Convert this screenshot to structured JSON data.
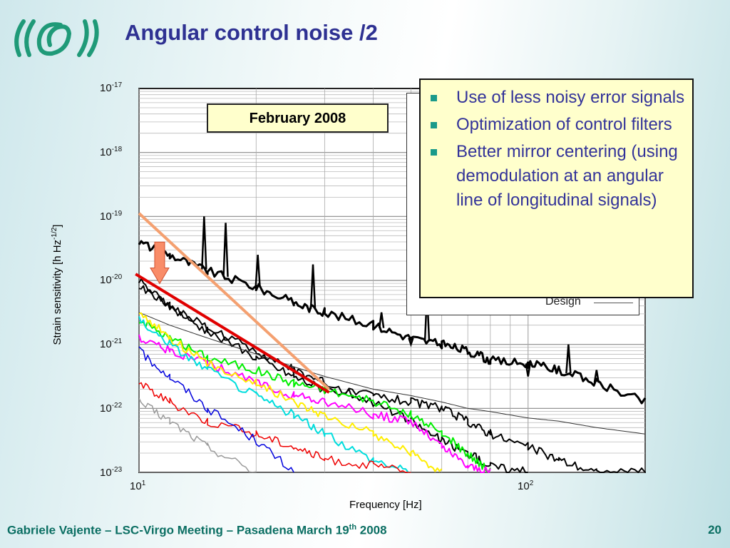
{
  "slide": {
    "title": "Angular control noise /2",
    "logo": "Virgo",
    "date_label": "February 2008",
    "notes": [
      "Use of less noisy error signals",
      "Optimization of control filters",
      "Better mirror centering (using demodulation at an angular line of longitudinal signals)"
    ],
    "footer": {
      "author": "Gabriele Vajente – LSC-Virgo Meeting – Pasadena March 19",
      "sup": "th",
      "year": " 2008"
    },
    "page_number": "20",
    "colors": {
      "title": "#2e3192",
      "footer": "#0a6e62",
      "bullet": "#1a9a8a",
      "note_text": "#333399",
      "logo": "#1f9a78"
    }
  },
  "chart_data": {
    "type": "line",
    "xlabel": "Frequency [Hz]",
    "ylabel": "Strain sensitivity [h Hz",
    "ylabel_sup": "-1/2",
    "ylabel_end": "]",
    "xscale": "log",
    "yscale": "log",
    "xlim": [
      10,
      200
    ],
    "ylim": [
      1e-23,
      1e-17
    ],
    "grid": true,
    "x_ticks": [
      {
        "base": "10",
        "exp": "1"
      },
      {
        "base": "10",
        "exp": "2"
      }
    ],
    "y_ticks": [
      {
        "base": "10",
        "exp": "-17"
      },
      {
        "base": "10",
        "exp": "-18"
      },
      {
        "base": "10",
        "exp": "-19"
      },
      {
        "base": "10",
        "exp": "-20"
      },
      {
        "base": "10",
        "exp": "-21"
      },
      {
        "base": "10",
        "exp": "-22"
      },
      {
        "base": "10",
        "exp": "-23"
      }
    ],
    "legend_visible_entry": "Design",
    "x": [
      10,
      12,
      15,
      20,
      25,
      30,
      40,
      50,
      60,
      70,
      80,
      100,
      120,
      150,
      200
    ],
    "series_log10": [
      {
        "color": "#000000",
        "width": 3,
        "values": [
          -19.4,
          -19.6,
          -19.85,
          -20.1,
          -20.35,
          -20.5,
          -20.7,
          -20.9,
          -21.0,
          -21.1,
          -21.25,
          -21.3,
          -21.4,
          -21.6,
          -21.9
        ],
        "peaks": [
          [
            14.7,
            -19.0
          ],
          [
            16.7,
            -19.1
          ],
          [
            20.2,
            -19.6
          ],
          [
            28,
            -19.75
          ],
          [
            42,
            -20.5
          ],
          [
            50,
            -21.0
          ],
          [
            55,
            -20.2
          ],
          [
            100,
            -21.5
          ],
          [
            127,
            -21.0
          ],
          [
            150,
            -21.4
          ]
        ]
      },
      {
        "color": "#000000",
        "width": 2,
        "values": [
          -20.0,
          -20.4,
          -20.8,
          -21.2,
          -21.5,
          -21.7,
          -21.8,
          -21.9,
          -22.0,
          -22.2,
          -22.4,
          -22.6,
          -22.8,
          -23,
          -23
        ]
      },
      {
        "color": "#000000",
        "width": 2,
        "values": [
          -20.1,
          -20.4,
          -20.75,
          -21.1,
          -21.4,
          -21.6,
          -21.9,
          -22.2,
          -22.5,
          -22.7,
          -22.9,
          -23,
          null,
          null,
          null
        ]
      },
      {
        "color": "#333333",
        "width": 1,
        "name": "Design",
        "values": [
          -20.5,
          -20.7,
          -20.9,
          -21.15,
          -21.35,
          -21.5,
          -21.7,
          -21.8,
          -21.9,
          -22.0,
          -22.05,
          -22.15,
          -22.2,
          -22.3,
          -22.4
        ]
      },
      {
        "color": "#00ee00",
        "width": 2,
        "values": [
          -20.6,
          -20.9,
          -21.2,
          -21.4,
          -21.6,
          -21.7,
          -21.9,
          -22.1,
          -22.4,
          -22.7,
          -23,
          null,
          null,
          null,
          null
        ]
      },
      {
        "color": "#ff00ff",
        "width": 2,
        "values": [
          -20.9,
          -21.1,
          -21.3,
          -21.6,
          -21.8,
          -21.9,
          -22.1,
          -22.2,
          -22.6,
          -22.9,
          -23,
          null,
          null,
          null,
          null
        ]
      },
      {
        "color": "#ffee00",
        "width": 2,
        "values": [
          -20.5,
          -20.9,
          -21.3,
          -21.6,
          -21.9,
          -22.1,
          -22.4,
          -22.7,
          -23,
          null,
          null,
          null,
          null,
          null,
          null
        ]
      },
      {
        "color": "#00dddd",
        "width": 2,
        "values": [
          -20.6,
          -21.0,
          -21.4,
          -21.8,
          -22.1,
          -22.4,
          -22.8,
          -23,
          null,
          null,
          null,
          null,
          null,
          null,
          null
        ]
      },
      {
        "color": "#ee0000",
        "width": 1.5,
        "values": [
          -21.6,
          -21.9,
          -22.2,
          -22.4,
          -22.6,
          -22.8,
          -22.9,
          -23,
          null,
          null,
          null,
          null,
          null,
          null,
          null
        ]
      },
      {
        "color": "#0000dd",
        "width": 1.5,
        "values": [
          -21.1,
          -21.5,
          -22.0,
          -22.5,
          -23,
          null,
          null,
          null,
          null,
          null,
          null,
          null,
          null,
          null,
          null
        ]
      },
      {
        "color": "#999999",
        "width": 1.5,
        "values": [
          -21.9,
          -22.2,
          -22.6,
          -23,
          null,
          null,
          null,
          null,
          null,
          null,
          null,
          null,
          null,
          null,
          null
        ]
      }
    ],
    "annotations": [
      {
        "type": "line",
        "color": "#f4a070",
        "from": [
          10,
          -18.95
        ],
        "to": [
          30.8,
          -21.7
        ]
      },
      {
        "type": "line",
        "color": "#e00000",
        "from": [
          9.8,
          -19.9
        ],
        "to": [
          30.8,
          -21.75
        ]
      },
      {
        "type": "arrow-down",
        "color": "#f98c68",
        "x": 11.3,
        "from": -19.4,
        "to": -20.05
      }
    ]
  }
}
